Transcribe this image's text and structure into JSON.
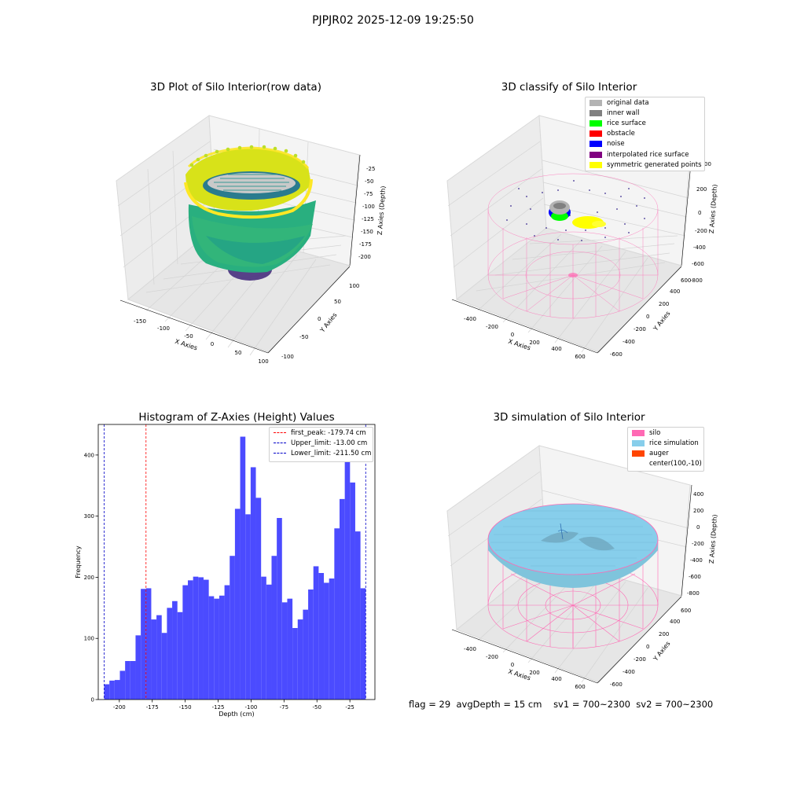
{
  "suptitle": "PJPJR02 2025-12-09 19:25:50",
  "status": {
    "flag": "flag = 29",
    "avgDepth": "avgDepth = 15 cm",
    "sv1": "sv1 = 700~2300",
    "sv2": "sv2 = 700~2300"
  },
  "colors": {
    "hist_bar": "#4b4bff",
    "first_peak_line": "#ff0000",
    "limit_line": "#0000c8",
    "silo": "#ff69b4",
    "rice_simulation": "#87ceeb",
    "auger": "#ff4500"
  },
  "chart_data": [
    {
      "type": "scatter",
      "title": "3D Plot of Silo Interior(row data)",
      "xlabel": "X Axies",
      "ylabel": "Y Axies",
      "zlabel": "Z Axies (Depth)",
      "x_ticks": [
        "-150",
        "-100",
        "-50",
        "0",
        "50",
        "100"
      ],
      "y_ticks": [
        "-100",
        "-50",
        "0",
        "50",
        "100"
      ],
      "z_ticks": [
        "-25",
        "-50",
        "-75",
        "-100",
        "-125",
        "-150",
        "-175",
        "-200"
      ],
      "colormap": "viridis"
    },
    {
      "type": "scatter",
      "title": "3D classify of Silo Interior",
      "xlabel": "X Axies",
      "ylabel": "Y Axies",
      "zlabel": "Z Axies (Depth)",
      "x_ticks": [
        "-400",
        "-200",
        "0",
        "200",
        "400",
        "600"
      ],
      "y_ticks": [
        "-600",
        "-400",
        "-200",
        "0",
        "200",
        "400",
        "600"
      ],
      "z_ticks": [
        "200",
        "0",
        "-200",
        "-400",
        "-600",
        "-800"
      ],
      "z_tick_partial": "00",
      "legend": [
        {
          "label": "original data",
          "color": "#b3b3b3"
        },
        {
          "label": "inner wall",
          "color": "#808080"
        },
        {
          "label": "rice surface",
          "color": "#00ff00"
        },
        {
          "label": "obstacle",
          "color": "#ff0000"
        },
        {
          "label": "noise",
          "color": "#0000ff"
        },
        {
          "label": "interpolated rice surface",
          "color": "#800080"
        },
        {
          "label": "symmetric generated points",
          "color": "#ffff00"
        }
      ]
    },
    {
      "type": "bar",
      "title": "Histogram of Z-Axies (Height) Values",
      "xlabel": "Depth (cm)",
      "ylabel": "Frequency",
      "xlim": [
        -216,
        -6
      ],
      "ylim": [
        0,
        450
      ],
      "x_ticks": [
        "-200",
        "-175",
        "-150",
        "-125",
        "-100",
        "-75",
        "-50",
        "-25"
      ],
      "x_tick_values": [
        -200,
        -175,
        -150,
        -125,
        -100,
        -75,
        -50,
        -25
      ],
      "y_ticks": [
        "0",
        "100",
        "200",
        "300",
        "400"
      ],
      "y_tick_values": [
        0,
        100,
        200,
        300,
        400
      ],
      "bin_start": -211.5,
      "bin_width": 3.97,
      "values": [
        25,
        31,
        32,
        47,
        63,
        63,
        105,
        181,
        182,
        131,
        138,
        109,
        150,
        161,
        143,
        187,
        195,
        201,
        200,
        196,
        169,
        165,
        170,
        187,
        235,
        312,
        430,
        303,
        380,
        330,
        201,
        188,
        235,
        297,
        159,
        165,
        117,
        131,
        147,
        180,
        218,
        207,
        191,
        198,
        280,
        328,
        392,
        355,
        275,
        182
      ],
      "vlines": [
        {
          "label": "first_peak: -179.74 cm",
          "x": -179.74,
          "kind": "first_peak"
        },
        {
          "label": "Upper_limit: -13.00 cm",
          "x": -13.0,
          "kind": "limit"
        },
        {
          "label": "Lower_limit: -211.50 cm",
          "x": -211.5,
          "kind": "limit"
        }
      ]
    },
    {
      "type": "scatter",
      "title": "3D simulation of Silo Interior",
      "xlabel": "X Axies",
      "ylabel": "Y Axies",
      "zlabel": "Z Axies (Depth)",
      "x_ticks": [
        "-400",
        "-200",
        "0",
        "200",
        "400",
        "600"
      ],
      "y_ticks": [
        "-600",
        "-400",
        "-200",
        "0",
        "200",
        "400",
        "600"
      ],
      "z_ticks": [
        "400",
        "200",
        "0",
        "-200",
        "-400",
        "-600",
        "-800"
      ],
      "legend": [
        {
          "label": "silo",
          "color": "#ff69b4"
        },
        {
          "label": "rice simulation",
          "color": "#87ceeb"
        },
        {
          "label": "auger",
          "color": "#ff4500"
        },
        {
          "label": "center(100,-10)",
          "color": ""
        }
      ]
    }
  ]
}
